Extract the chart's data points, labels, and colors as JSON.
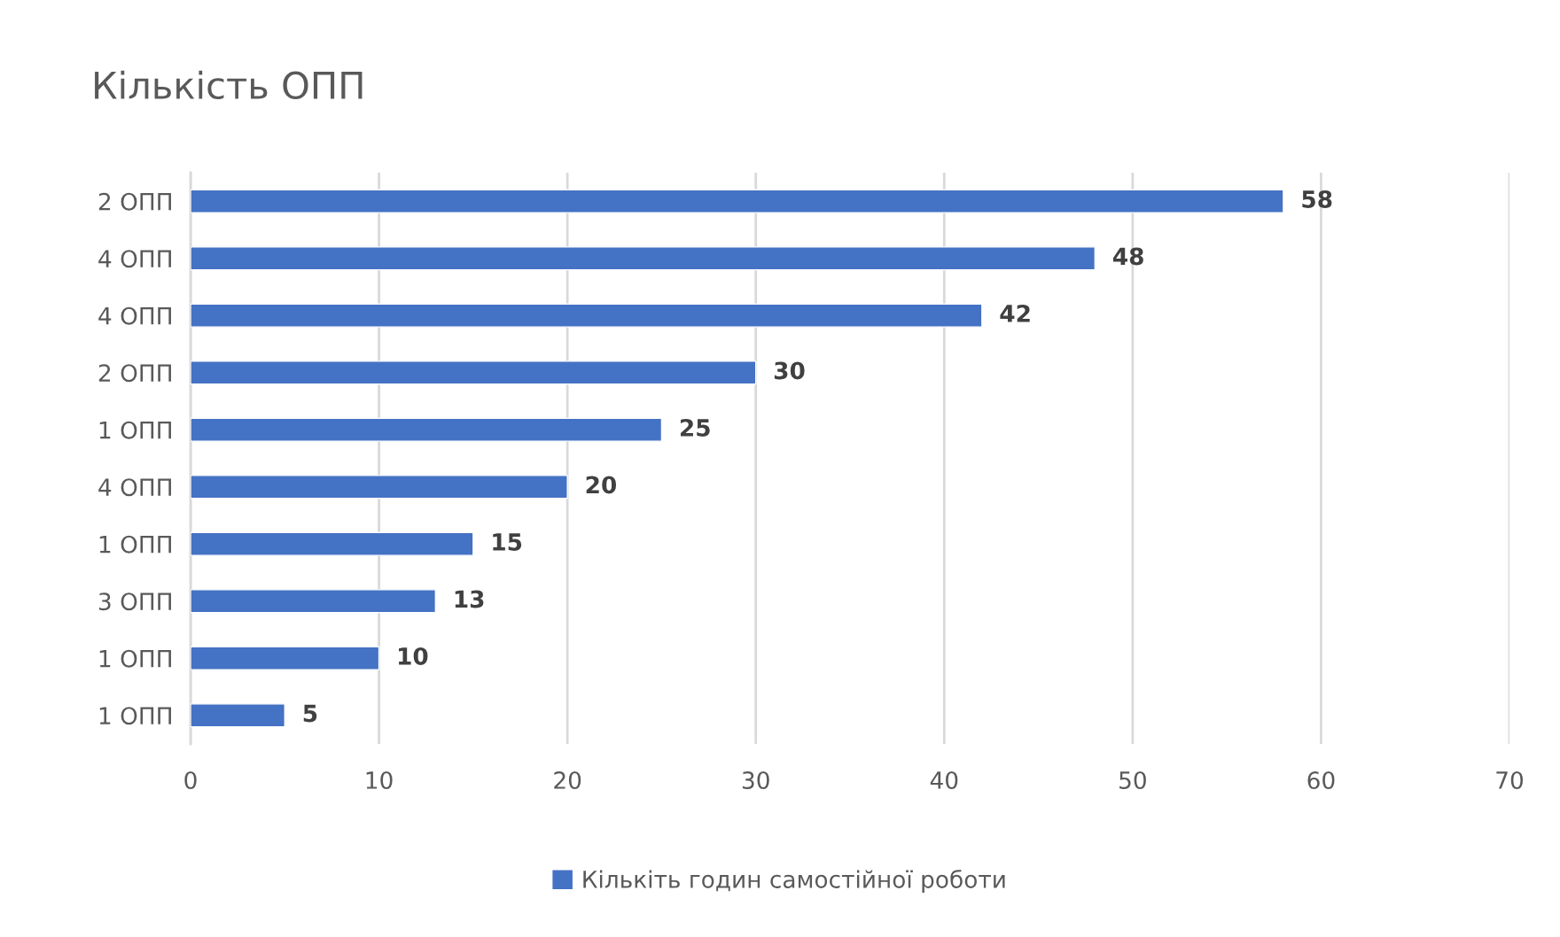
{
  "chart_data": {
    "type": "bar",
    "orientation": "horizontal",
    "title": "Кількість ОПП",
    "categories": [
      "2 ОПП",
      "4 ОПП",
      "4 ОПП",
      "2 ОПП",
      "1 ОПП",
      "4 ОПП",
      "1 ОПП",
      "3 ОПП",
      "1 ОПП",
      "1 ОПП"
    ],
    "series": [
      {
        "name": "Кількіть годин самостійної роботи",
        "color": "#4472c4",
        "values": [
          58,
          48,
          42,
          30,
          25,
          20,
          15,
          13,
          10,
          5
        ]
      }
    ],
    "xlim": [
      0,
      70
    ],
    "xticks": [
      0,
      10,
      20,
      30,
      40,
      50,
      60,
      70
    ],
    "grid": "x",
    "legend": "bottom",
    "data_labels": true
  }
}
